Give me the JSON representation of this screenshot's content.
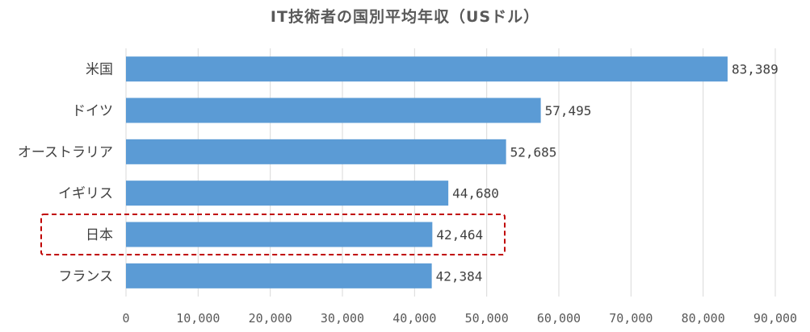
{
  "chart_data": {
    "type": "bar",
    "orientation": "horizontal",
    "title": "IT技術者の国別平均年収（USドル）",
    "categories": [
      "米国",
      "ドイツ",
      "オーストラリア",
      "イギリス",
      "日本",
      "フランス"
    ],
    "values": [
      83389,
      57495,
      52685,
      44680,
      42464,
      42384
    ],
    "value_labels": [
      "83,389",
      "57,495",
      "52,685",
      "44,680",
      "42,464",
      "42,384"
    ],
    "xlim": [
      0,
      90000
    ],
    "x_ticks": [
      0,
      10000,
      20000,
      30000,
      40000,
      50000,
      60000,
      70000,
      80000,
      90000
    ],
    "x_tick_labels": [
      "0",
      "10,000",
      "20,000",
      "30,000",
      "40,000",
      "50,000",
      "60,000",
      "70,000",
      "80,000",
      "90,000"
    ],
    "grid": true,
    "bar_color": "#5b9bd5",
    "highlight": {
      "category": "日本",
      "style": "dashed",
      "color": "#c00000"
    }
  }
}
